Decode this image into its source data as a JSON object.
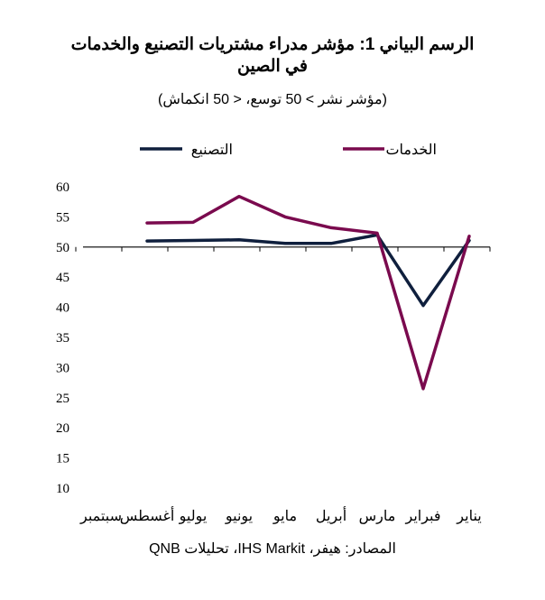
{
  "chart_data": {
    "type": "line",
    "title": "الرسم البياني 1: مؤشر مدراء مشتريات التصنيع والخدمات",
    "title_line2": "في الصين",
    "subtitle": "(مؤشر نشر > 50 توسع، < 50 انكماش)",
    "categories": [
      "يناير",
      "فبراير",
      "مارس",
      "أبريل",
      "مايو",
      "يونيو",
      "يوليو",
      "أغسطس",
      "سبتمبر"
    ],
    "ylim": [
      10,
      60
    ],
    "yticks": [
      10,
      15,
      20,
      25,
      30,
      35,
      40,
      45,
      50,
      55,
      60
    ],
    "x_direction": "right-to-left",
    "baseline": 50,
    "legend_position": "top",
    "series": [
      {
        "name": "التصنيع",
        "color": "#0f1f3d",
        "values": [
          51.1,
          40.3,
          52.0,
          50.6,
          50.6,
          51.2,
          51.1,
          51.0,
          null
        ]
      },
      {
        "name": "الخدمات",
        "color": "#7a0a4e",
        "values": [
          51.8,
          26.5,
          52.3,
          53.2,
          55.0,
          58.4,
          54.1,
          54.0,
          null
        ]
      }
    ],
    "source": "المصادر: هيفر، IHS Markit، تحليلات QNB"
  }
}
